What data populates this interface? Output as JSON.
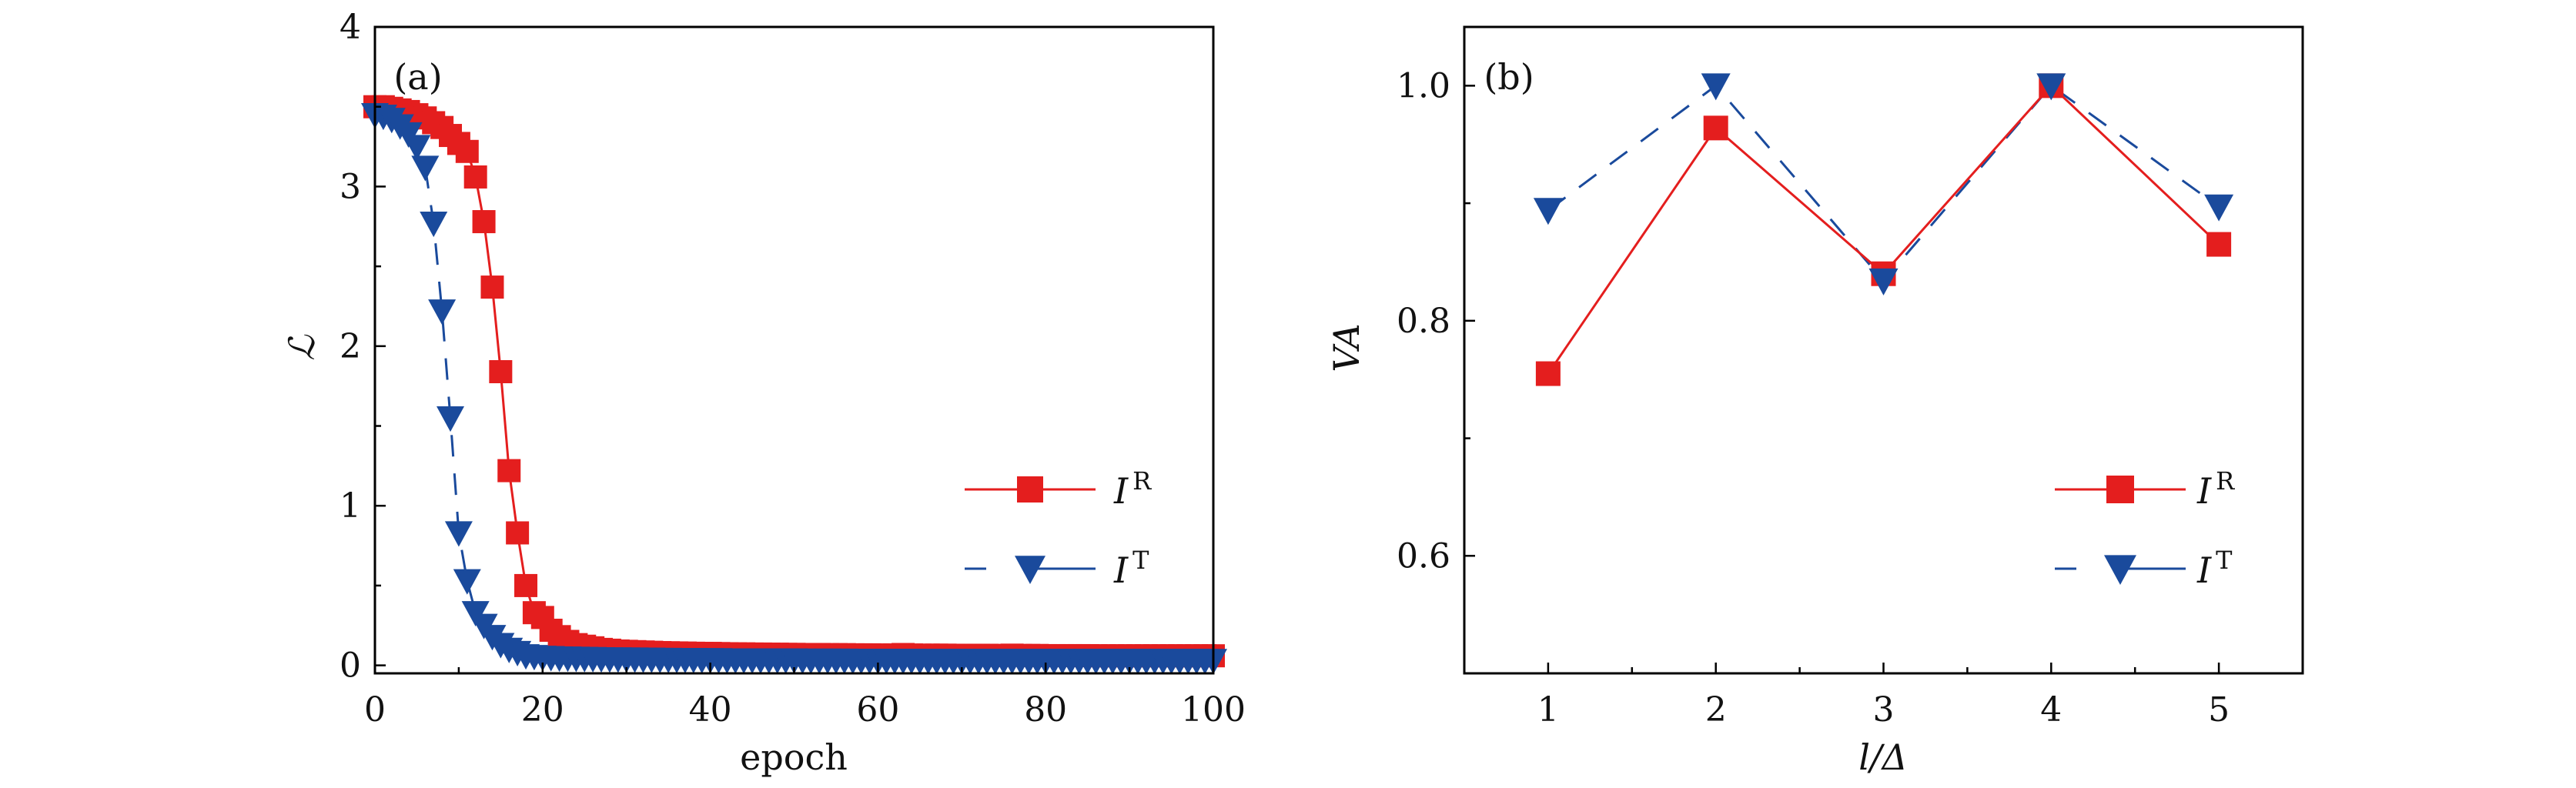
{
  "colors": {
    "R": "#e41e1e",
    "T": "#1a4a9c",
    "axis": "#000000"
  },
  "chart_data": [
    {
      "type": "scatter",
      "panel_label": "(a)",
      "xlabel": "epoch",
      "ylabel": "ℒ",
      "xlim": [
        0,
        100
      ],
      "ylim": [
        -0.05,
        4
      ],
      "xticks": [
        "0",
        "20",
        "40",
        "60",
        "80",
        "100"
      ],
      "yticks": [
        "0",
        "1",
        "2",
        "3",
        "4"
      ],
      "legend": {
        "position": "right-middle",
        "entries": [
          {
            "base": "I",
            "sup": "R"
          },
          {
            "base": "I",
            "sup": "T"
          }
        ]
      },
      "x": [
        0,
        1,
        2,
        3,
        4,
        5,
        6,
        7,
        8,
        9,
        10,
        11,
        12,
        13,
        14,
        15,
        16,
        17,
        18,
        19,
        20,
        21,
        22,
        23,
        24,
        25,
        26,
        27,
        28,
        29,
        30,
        31,
        32,
        33,
        34,
        35,
        36,
        37,
        38,
        39,
        40,
        41,
        42,
        43,
        44,
        45,
        46,
        47,
        48,
        49,
        50,
        51,
        52,
        53,
        54,
        55,
        56,
        57,
        58,
        59,
        60,
        61,
        62,
        63,
        64,
        65,
        66,
        67,
        68,
        69,
        70,
        71,
        72,
        73,
        74,
        75,
        76,
        77,
        78,
        79,
        80,
        81,
        82,
        83,
        84,
        85,
        86,
        87,
        88,
        89,
        90,
        91,
        92,
        93,
        94,
        95,
        96,
        97,
        98,
        99,
        100
      ],
      "series": [
        {
          "name": "I^R",
          "marker": "square",
          "line": "solid",
          "values": [
            3.5,
            3.5,
            3.49,
            3.48,
            3.47,
            3.45,
            3.43,
            3.4,
            3.37,
            3.32,
            3.27,
            3.22,
            3.06,
            2.78,
            2.37,
            1.84,
            1.22,
            0.83,
            0.5,
            0.33,
            0.3,
            0.22,
            0.18,
            0.15,
            0.13,
            0.12,
            0.11,
            0.1,
            0.095,
            0.09,
            0.088,
            0.086,
            0.084,
            0.082,
            0.08,
            0.079,
            0.078,
            0.077,
            0.076,
            0.075,
            0.075,
            0.074,
            0.073,
            0.072,
            0.072,
            0.071,
            0.071,
            0.07,
            0.07,
            0.069,
            0.069,
            0.068,
            0.068,
            0.068,
            0.067,
            0.067,
            0.067,
            0.066,
            0.066,
            0.066,
            0.065,
            0.065,
            0.065,
            0.068,
            0.065,
            0.064,
            0.064,
            0.064,
            0.064,
            0.063,
            0.063,
            0.063,
            0.063,
            0.063,
            0.062,
            0.062,
            0.064,
            0.062,
            0.062,
            0.062,
            0.061,
            0.061,
            0.061,
            0.061,
            0.061,
            0.061,
            0.06,
            0.06,
            0.06,
            0.06,
            0.06,
            0.06,
            0.06,
            0.06,
            0.06,
            0.06,
            0.06,
            0.06,
            0.06,
            0.06,
            0.06
          ]
        },
        {
          "name": "I^T",
          "marker": "triangle-down",
          "line": "dashed",
          "values": [
            3.45,
            3.44,
            3.42,
            3.38,
            3.33,
            3.25,
            3.12,
            2.77,
            2.22,
            1.55,
            0.83,
            0.53,
            0.33,
            0.25,
            0.18,
            0.13,
            0.1,
            0.08,
            0.06,
            0.055,
            0.05,
            0.048,
            0.046,
            0.045,
            0.044,
            0.043,
            0.042,
            0.041,
            0.04,
            0.04,
            0.039,
            0.039,
            0.038,
            0.038,
            0.037,
            0.037,
            0.036,
            0.036,
            0.036,
            0.035,
            0.035,
            0.035,
            0.034,
            0.034,
            0.034,
            0.034,
            0.033,
            0.033,
            0.033,
            0.033,
            0.033,
            0.032,
            0.032,
            0.032,
            0.032,
            0.032,
            0.032,
            0.031,
            0.031,
            0.031,
            0.031,
            0.031,
            0.031,
            0.031,
            0.031,
            0.03,
            0.03,
            0.03,
            0.03,
            0.03,
            0.03,
            0.03,
            0.03,
            0.03,
            0.03,
            0.03,
            0.03,
            0.03,
            0.03,
            0.03,
            0.03,
            0.03,
            0.03,
            0.03,
            0.03,
            0.03,
            0.03,
            0.03,
            0.03,
            0.03,
            0.03,
            0.03,
            0.03,
            0.03,
            0.03,
            0.03,
            0.03,
            0.03,
            0.03,
            0.03,
            0.03
          ]
        }
      ]
    },
    {
      "type": "line",
      "panel_label": "(b)",
      "xlabel": "l/Δ",
      "ylabel": "VA",
      "xlim": [
        0.5,
        5.5
      ],
      "ylim": [
        0.5,
        1.05
      ],
      "xticks": [
        "1",
        "2",
        "3",
        "4",
        "5"
      ],
      "yticks": [
        "0.6",
        "0.8",
        "1.0"
      ],
      "legend": {
        "position": "bottom-right",
        "entries": [
          {
            "base": "I",
            "sup": "R"
          },
          {
            "base": "I",
            "sup": "T"
          }
        ]
      },
      "x": [
        1,
        2,
        3,
        4,
        5
      ],
      "series": [
        {
          "name": "I^R",
          "marker": "square",
          "line": "solid",
          "values": [
            0.755,
            0.964,
            0.84,
            1.0,
            0.865
          ]
        },
        {
          "name": "I^T",
          "marker": "triangle-down",
          "line": "dashed",
          "values": [
            0.894,
            1.0,
            0.834,
            1.0,
            0.897
          ]
        }
      ]
    }
  ]
}
